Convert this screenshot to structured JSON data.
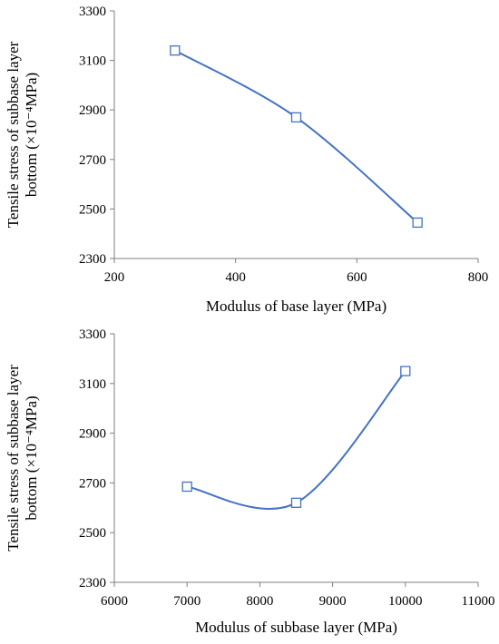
{
  "chart_data": [
    {
      "type": "line",
      "smooth": true,
      "xlabel": "Modulus of base layer (MPa)",
      "ylabel_line1": "Tensile stress of subbase layer",
      "ylabel_line2": "bottom (×10⁻⁴MPa)",
      "xlim": [
        200,
        800
      ],
      "ylim": [
        2300,
        3300
      ],
      "xticks": [
        200,
        400,
        600,
        800
      ],
      "yticks": [
        2300,
        2500,
        2700,
        2900,
        3100,
        3300
      ],
      "xtick_labels": [
        "200",
        "400",
        "600",
        "800"
      ],
      "ytick_labels": [
        "2300",
        "2500",
        "2700",
        "2900",
        "3100",
        "3300"
      ],
      "grid": false,
      "legend": "none",
      "marker": "hollow-square",
      "color": "#4472C4",
      "x": [
        300,
        500,
        700
      ],
      "y": [
        3140,
        2870,
        2445
      ]
    },
    {
      "type": "line",
      "smooth": true,
      "xlabel": "Modulus of subbase layer (MPa)",
      "ylabel_line1": "Tensile stress of subbase layer",
      "ylabel_line2": "bottom (×10⁻⁴MPa)",
      "xlim": [
        6000,
        11000
      ],
      "ylim": [
        2300,
        3300
      ],
      "xticks": [
        6000,
        7000,
        8000,
        9000,
        10000,
        11000
      ],
      "yticks": [
        2300,
        2500,
        2700,
        2900,
        3100,
        3300
      ],
      "xtick_labels": [
        "6000",
        "7000",
        "8000",
        "9000",
        "10000",
        "11000"
      ],
      "ytick_labels": [
        "2300",
        "2500",
        "2700",
        "2900",
        "3100",
        "3300"
      ],
      "grid": false,
      "legend": "none",
      "marker": "hollow-square",
      "color": "#4472C4",
      "x": [
        7000,
        8500,
        10000
      ],
      "y": [
        2685,
        2620,
        3150
      ]
    }
  ]
}
